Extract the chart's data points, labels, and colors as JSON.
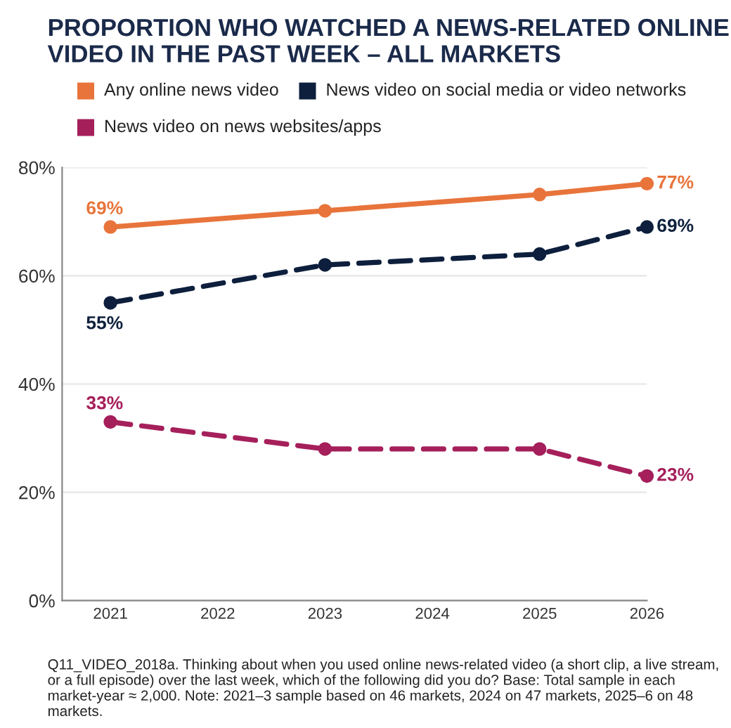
{
  "chart_data": {
    "type": "line",
    "title": "PROPORTION WHO WATCHED A NEWS-RELATED ONLINE VIDEO IN THE PAST WEEK – ALL MARKETS",
    "x": [
      2021,
      2023,
      2025,
      2026
    ],
    "series": [
      {
        "name": "Any online news video",
        "color": "#e8743b",
        "line_style": "solid",
        "values": [
          69,
          72,
          75,
          77
        ],
        "value_labels": [
          "69%",
          null,
          null,
          "77%"
        ]
      },
      {
        "name": "News video on social media or video networks",
        "color": "#0d1f3c",
        "line_style": "dashed",
        "values": [
          55,
          62,
          64,
          69
        ],
        "value_labels": [
          "55%",
          null,
          null,
          "69%"
        ]
      },
      {
        "name": "News video on news websites/apps",
        "color": "#a51f5b",
        "line_style": "dashed",
        "values": [
          33,
          28,
          28,
          23
        ],
        "value_labels": [
          "33%",
          null,
          null,
          "23%"
        ]
      }
    ],
    "xlim": [
      2020.55,
      2026
    ],
    "xticks": [
      2021,
      2022,
      2023,
      2024,
      2025,
      2026
    ],
    "ylim": [
      0,
      80
    ],
    "yticks": [
      {
        "value": 0,
        "label": "0%"
      },
      {
        "value": 20,
        "label": "20%"
      },
      {
        "value": 40,
        "label": "40%"
      },
      {
        "value": 60,
        "label": "60%"
      },
      {
        "value": 80,
        "label": "80%"
      }
    ],
    "grid": "y",
    "legend": "top",
    "marker": "circle",
    "annotations": [
      "Q11_VIDEO_2018a. Thinking about when you used online news-related video (a short clip, a live stream, or a full episode) over the last week, which of the following did you do? Base: Total sample in each market-year ≈ 2,000. Note: 2021–3 sample based on 46 markets, 2024 on 47 markets, 2025–6 on 48 markets."
    ]
  }
}
